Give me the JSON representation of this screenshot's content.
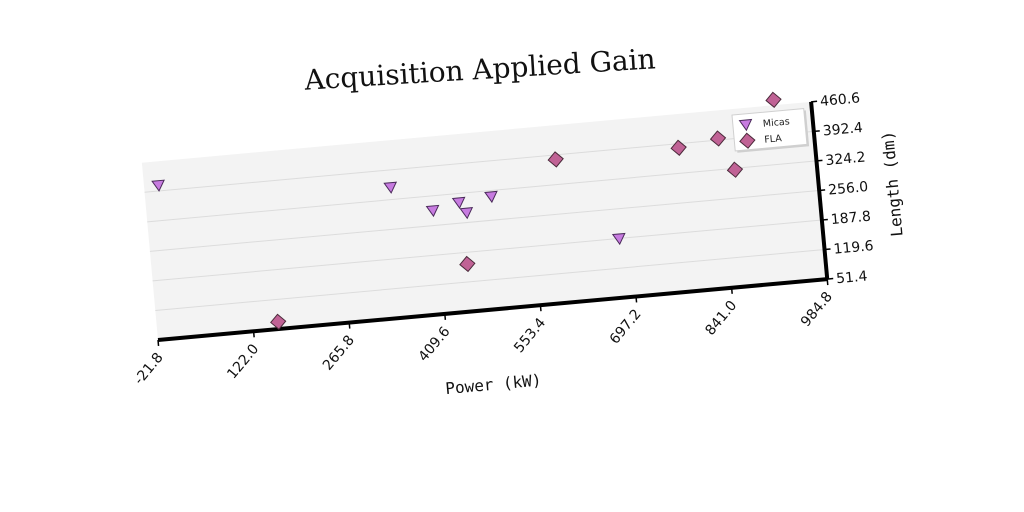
{
  "chart_data": {
    "type": "scatter",
    "title": "Acquisition Applied Gain",
    "xlabel": "Power (kW)",
    "ylabel": "Length (dm)",
    "xlim": [
      -21.8,
      984.8
    ],
    "ylim": [
      51.4,
      460.6
    ],
    "x_ticks": [
      "-21.8",
      "122.0",
      "265.8",
      "409.6",
      "553.4",
      "697.2",
      "841.0",
      "984.8"
    ],
    "y_ticks": [
      "51.4",
      "119.6",
      "187.8",
      "256.0",
      "324.2",
      "392.4",
      "460.6"
    ],
    "grid": true,
    "y_axis_side": "right",
    "legend_position": "top-right",
    "series": [
      {
        "name": "Micas",
        "marker": "triangle-down",
        "color": "#c77be0",
        "points": [
          [
            0,
            405
          ],
          [
            346,
            352
          ],
          [
            406,
            290
          ],
          [
            446,
            303
          ],
          [
            456,
            278
          ],
          [
            495,
            310
          ],
          [
            680,
            187
          ]
        ]
      },
      {
        "name": "FLA",
        "marker": "diamond",
        "color": "#c06295",
        "points": [
          [
            160,
            68
          ],
          [
            450,
            161
          ],
          [
            596,
            382
          ],
          [
            781,
            383
          ],
          [
            841,
            396
          ],
          [
            862,
            321
          ],
          [
            929,
            473
          ]
        ]
      }
    ]
  }
}
